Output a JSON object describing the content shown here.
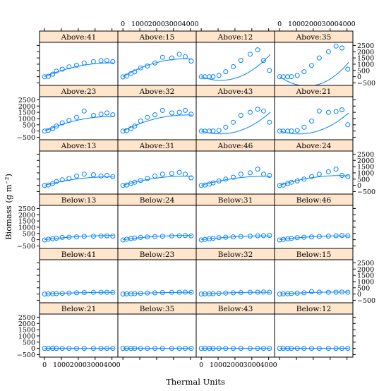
{
  "chart_data": {
    "type": "scatter",
    "title": "",
    "xlabel": "Thermal Units",
    "ylabel": "Biomass (g m⁻²)",
    "xlim": [
      -300,
      4350
    ],
    "ylim": [
      -700,
      2750
    ],
    "x_ticks": [
      0,
      1000,
      2000,
      3000,
      4000
    ],
    "x_tick_labels": [
      "0",
      "1000",
      "2000",
      "3000",
      "4000"
    ],
    "y_ticks": [
      -500,
      0,
      500,
      1000,
      1500,
      2000,
      2500
    ],
    "y_tick_labels": [
      "−500",
      "0",
      "500",
      "1000",
      "1500",
      "2000",
      "2500"
    ],
    "layout": {
      "columns": 4,
      "rows": 6
    },
    "colors": {
      "points": "#0080ff",
      "fit_line": "#0080ff",
      "strip_bg": "#ffe5cc",
      "frame": "#000000"
    },
    "x": [
      0,
      220,
      480,
      700,
      1050,
      1450,
      1900,
      2350,
      2900,
      3350,
      3700,
      4050
    ],
    "panels": [
      {
        "label": "Above:41",
        "y": [
          -10,
          30,
          200,
          450,
          600,
          780,
          920,
          1100,
          1200,
          1280,
          1300,
          1200
        ],
        "fit": [
          -7.1e-05,
          0.56,
          0
        ]
      },
      {
        "label": "Above:15",
        "y": [
          -20,
          50,
          250,
          380,
          700,
          850,
          1100,
          1550,
          1500,
          1800,
          1600,
          1250
        ],
        "fit": [
          -0.000103,
          0.77,
          0
        ]
      },
      {
        "label": "Above:12",
        "y": [
          -10,
          -10,
          -5,
          0,
          100,
          400,
          800,
          1300,
          1800,
          2150,
          1300,
          500
        ],
        "fit": [
          4.9e-09,
          0.000208,
          -0.5
        ]
      },
      {
        "label": "Above:35",
        "y": [
          -10,
          -10,
          -5,
          0,
          100,
          400,
          900,
          1500,
          2000,
          2450,
          2300,
          600
        ],
        "fit": [
          8e-09,
          0.000255,
          -0.9
        ]
      },
      {
        "label": "Above:23",
        "y": [
          -10,
          50,
          200,
          400,
          650,
          850,
          1100,
          1600,
          1250,
          1350,
          1450,
          1300
        ],
        "fit": [
          -7.5e-05,
          0.59,
          0
        ]
      },
      {
        "label": "Above:32",
        "y": [
          -10,
          30,
          180,
          400,
          800,
          1100,
          1300,
          1650,
          1450,
          1500,
          1650,
          1350
        ],
        "fit": [
          -9e-05,
          0.68,
          0
        ]
      },
      {
        "label": "Above:43",
        "y": [
          -10,
          -10,
          -5,
          0,
          50,
          300,
          700,
          1250,
          1500,
          1750,
          1600,
          700
        ],
        "fit": [
          3.7e-09,
          0.000172,
          -0.4
        ]
      },
      {
        "label": "Above:21",
        "y": [
          -10,
          -10,
          -5,
          0,
          50,
          300,
          800,
          1600,
          1500,
          1550,
          1700,
          500
        ],
        "fit": [
          3.8e-09,
          0.000168,
          -0.4
        ]
      },
      {
        "label": "Above:13",
        "y": [
          -10,
          30,
          150,
          300,
          450,
          550,
          750,
          900,
          850,
          750,
          800,
          700
        ],
        "fit": [
          -4.8e-05,
          0.36,
          0
        ]
      },
      {
        "label": "Above:31",
        "y": [
          -10,
          30,
          150,
          250,
          400,
          550,
          750,
          900,
          950,
          1050,
          900,
          600
        ],
        "fit": [
          -5.4e-05,
          0.4,
          0
        ]
      },
      {
        "label": "Above:46",
        "y": [
          -10,
          30,
          100,
          200,
          350,
          500,
          650,
          900,
          1000,
          1300,
          900,
          800
        ],
        "fit": [
          -4.9e-05,
          0.38,
          0
        ]
      },
      {
        "label": "Above:24",
        "y": [
          -10,
          20,
          150,
          250,
          350,
          500,
          700,
          900,
          1100,
          1300,
          800,
          700
        ],
        "fit": [
          -6.2e-05,
          0.44,
          0
        ]
      },
      {
        "label": "Below:13",
        "y": [
          -20,
          40,
          80,
          120,
          180,
          200,
          230,
          260,
          280,
          300,
          310,
          290
        ],
        "fit": [
          -2.2e-05,
          0.17,
          0
        ]
      },
      {
        "label": "Below:24",
        "y": [
          -20,
          40,
          90,
          130,
          180,
          220,
          250,
          280,
          300,
          320,
          330,
          310
        ],
        "fit": [
          -2.4e-05,
          0.18,
          0
        ]
      },
      {
        "label": "Below:31",
        "y": [
          -20,
          30,
          70,
          110,
          160,
          200,
          230,
          260,
          290,
          310,
          330,
          340
        ],
        "fit": [
          -2.1e-05,
          0.16,
          0
        ]
      },
      {
        "label": "Below:46",
        "y": [
          -20,
          30,
          70,
          110,
          160,
          200,
          230,
          260,
          290,
          320,
          340,
          320
        ],
        "fit": [
          -2.2e-05,
          0.165,
          0
        ]
      },
      {
        "label": "Below:41",
        "y": [
          0,
          10,
          20,
          30,
          60,
          80,
          100,
          120,
          130,
          140,
          140,
          130
        ],
        "fit": [
          -9.5e-06,
          0.07,
          0
        ]
      },
      {
        "label": "Below:23",
        "y": [
          0,
          10,
          20,
          30,
          60,
          80,
          100,
          120,
          130,
          140,
          150,
          140
        ],
        "fit": [
          -9.5e-06,
          0.07,
          0
        ]
      },
      {
        "label": "Below:32",
        "y": [
          0,
          10,
          20,
          30,
          60,
          80,
          100,
          120,
          140,
          150,
          160,
          140
        ],
        "fit": [
          -1e-05,
          0.075,
          0
        ]
      },
      {
        "label": "Below:15",
        "y": [
          0,
          10,
          20,
          40,
          70,
          100,
          200,
          150,
          140,
          150,
          160,
          140
        ],
        "fit": [
          -1.3e-05,
          0.09,
          0
        ]
      },
      {
        "label": "Below:21",
        "y": [
          0,
          0,
          0,
          0,
          0,
          0,
          0,
          0,
          0,
          0,
          0,
          0
        ],
        "fit": [
          0,
          0,
          0
        ]
      },
      {
        "label": "Below:35",
        "y": [
          0,
          0,
          0,
          0,
          0,
          0,
          0,
          0,
          0,
          0,
          0,
          0
        ],
        "fit": [
          0,
          0,
          0
        ]
      },
      {
        "label": "Below:43",
        "y": [
          0,
          0,
          0,
          0,
          0,
          0,
          0,
          0,
          0,
          0,
          0,
          0
        ],
        "fit": [
          0,
          0,
          0
        ]
      },
      {
        "label": "Below:12",
        "y": [
          0,
          0,
          0,
          0,
          0,
          0,
          0,
          0,
          0,
          0,
          0,
          0
        ],
        "fit": [
          0,
          0,
          0
        ]
      }
    ],
    "grid": false,
    "legend": "none"
  }
}
